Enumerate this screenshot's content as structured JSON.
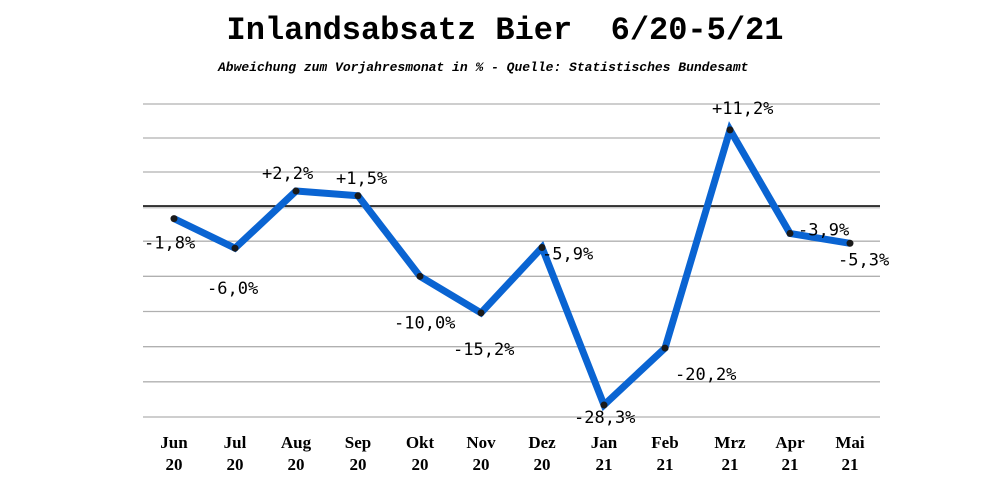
{
  "chart_data": {
    "type": "line",
    "title": "Inlandsabsatz Bier  6/20-5/21",
    "subtitle": "Abweichung zum Vorjahresmonat in % - Quelle: Statistisches Bundesamt",
    "categories": [
      [
        "Jun",
        "20"
      ],
      [
        "Jul",
        "20"
      ],
      [
        "Aug",
        "20"
      ],
      [
        "Sep",
        "20"
      ],
      [
        "Okt",
        "20"
      ],
      [
        "Nov",
        "20"
      ],
      [
        "Dez",
        "20"
      ],
      [
        "Jan",
        "21"
      ],
      [
        "Feb",
        "21"
      ],
      [
        "Mrz",
        "21"
      ],
      [
        "Apr",
        "21"
      ],
      [
        "Mai",
        "21"
      ]
    ],
    "values": [
      -1.8,
      -6.0,
      2.2,
      1.5,
      -10.0,
      -15.2,
      -5.9,
      -28.3,
      -20.2,
      11.2,
      -3.9,
      -5.3
    ],
    "data_labels": [
      "-1,8%",
      "-6,0%",
      "+2,2%",
      "+1,5%",
      "-10,0%",
      "-15,2%",
      "-5,9%",
      "-28,3%",
      "-20,2%",
      "+11,2%",
      "-3,9%",
      "-5,3%"
    ],
    "ylim": [
      -30,
      15
    ],
    "grid_step": 5,
    "grid": true,
    "zero_line": true,
    "line_color": "#0a64d2",
    "marker_color": "#1a1a1a",
    "grid_color": "#b0b0b0"
  }
}
